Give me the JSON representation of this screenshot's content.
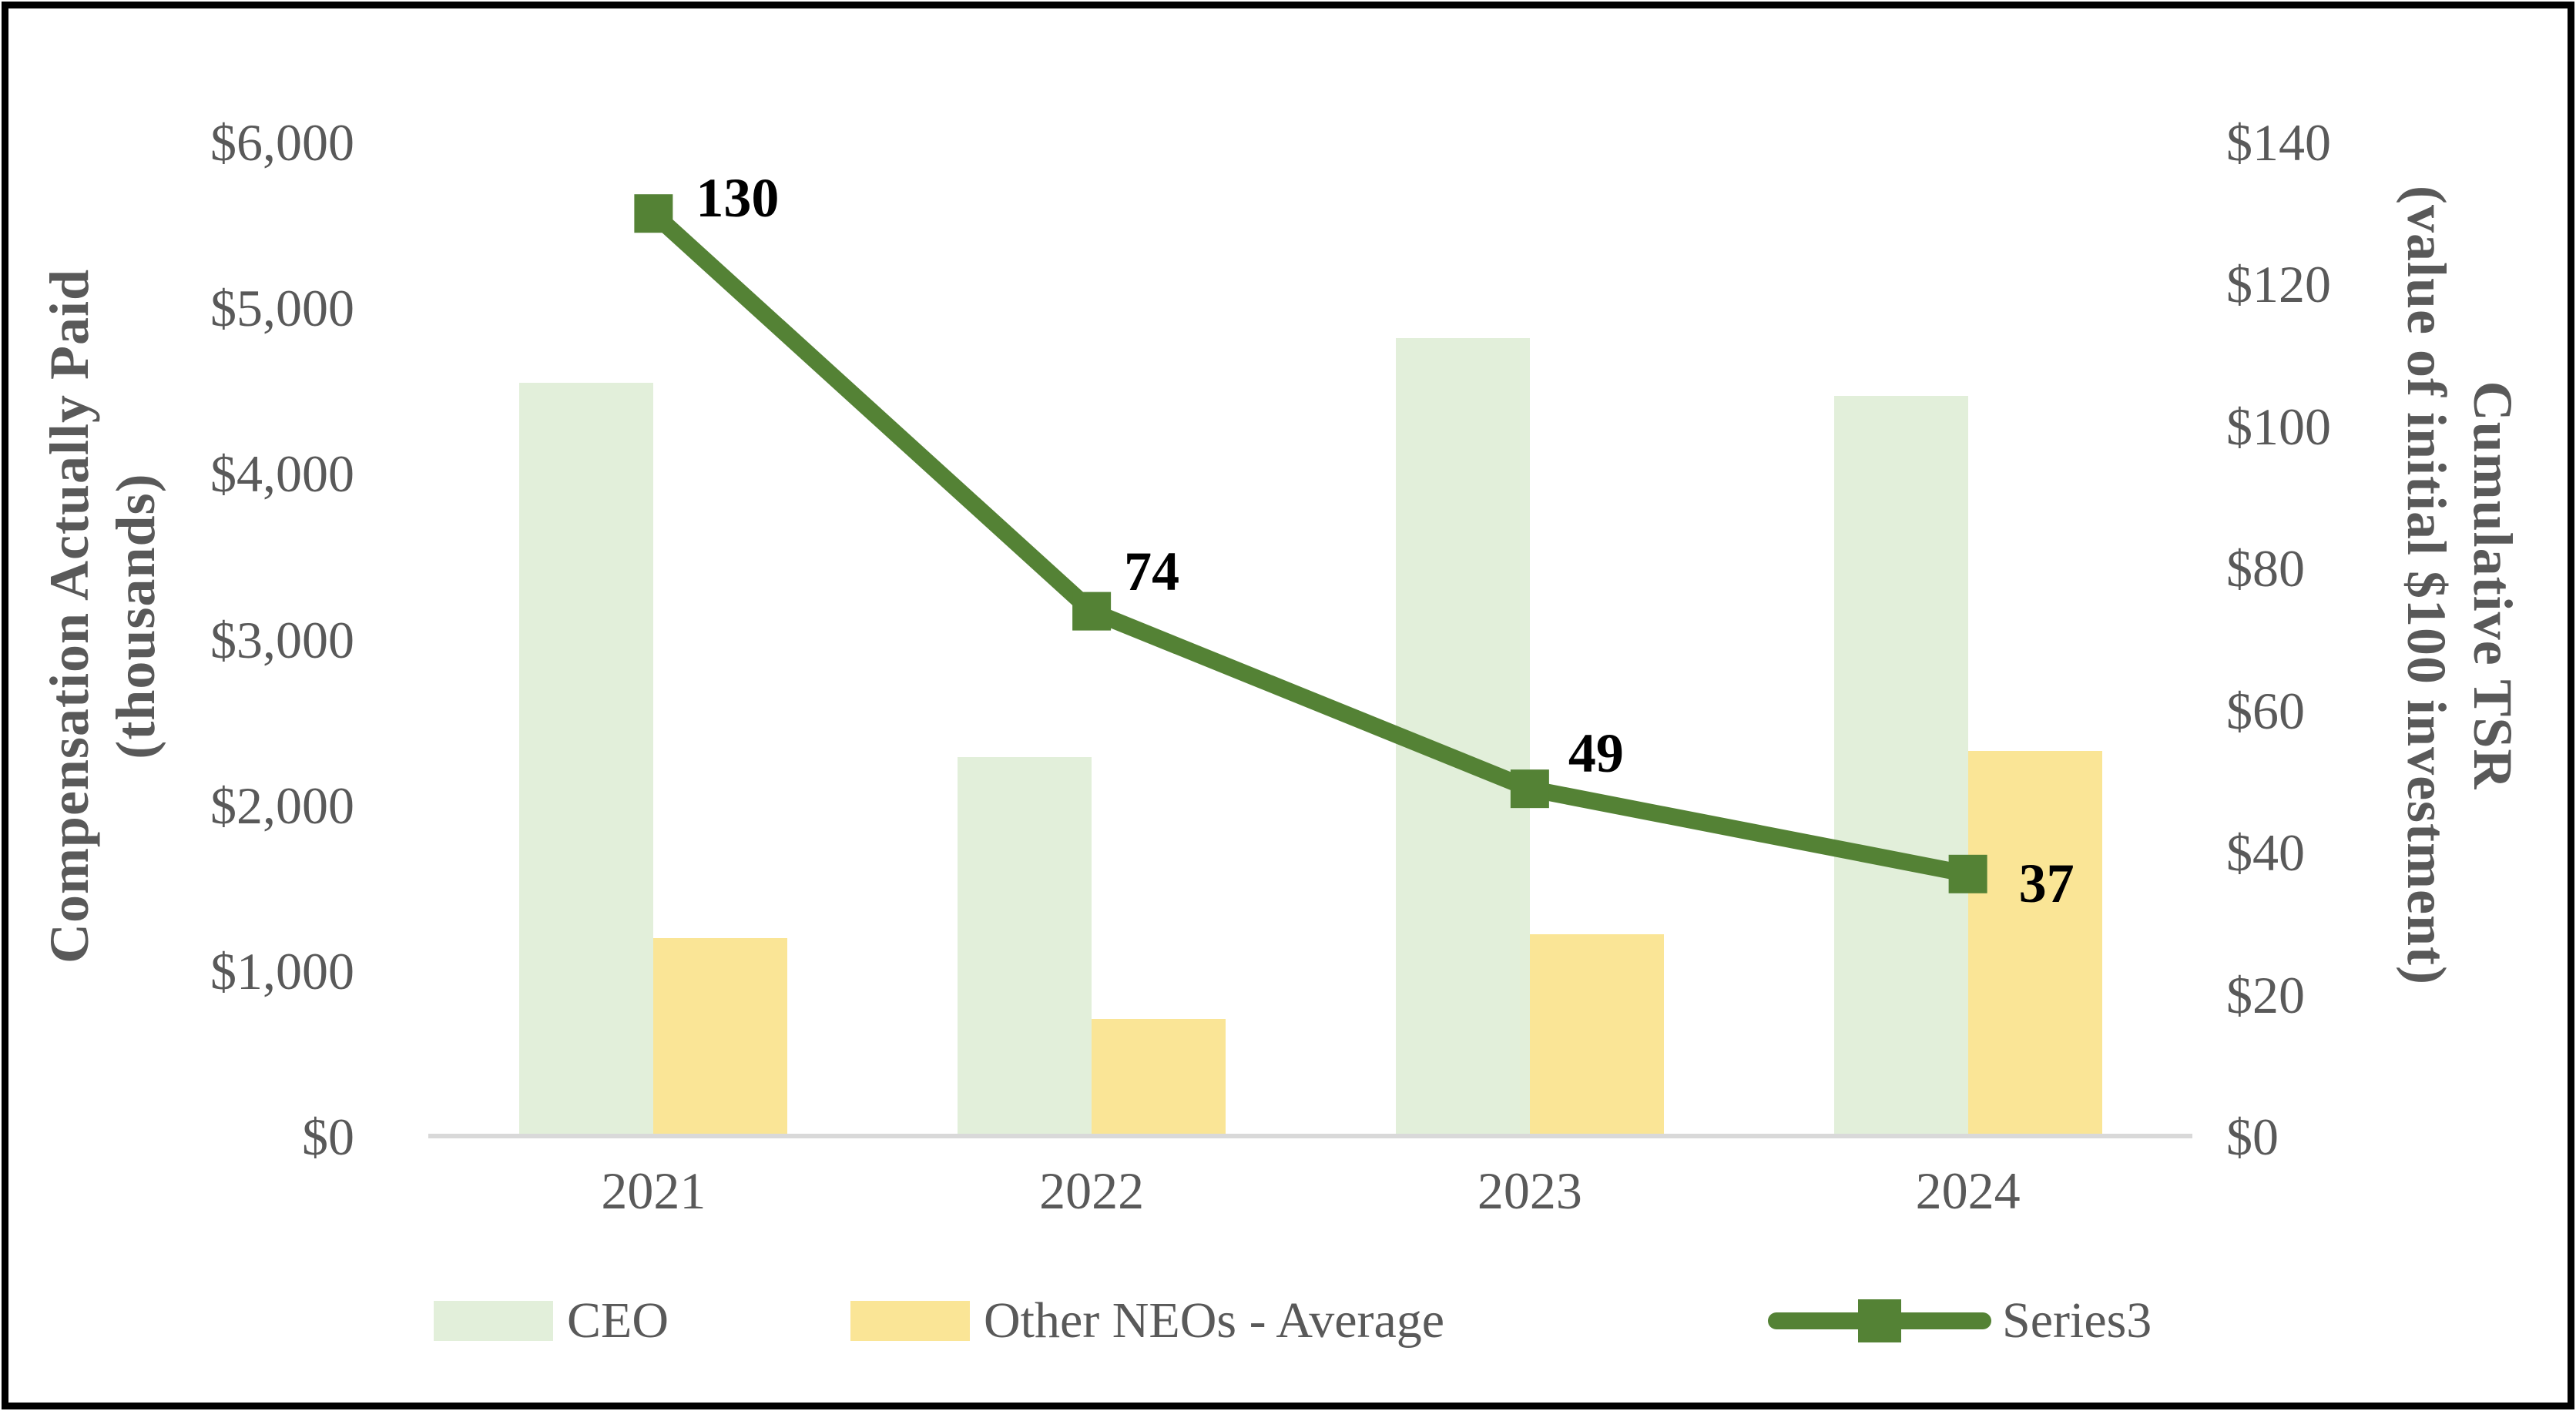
{
  "chart_data": {
    "type": "combo-bar-line",
    "categories": [
      "2021",
      "2022",
      "2023",
      "2024"
    ],
    "series": [
      {
        "name": "CEO",
        "type": "bar",
        "axis": "left",
        "color": "#E2EFDA",
        "values": [
          4550,
          2290,
          4820,
          4470
        ]
      },
      {
        "name": "Other NEOs - Average",
        "type": "bar",
        "axis": "left",
        "color": "#FAE596",
        "values": [
          1200,
          710,
          1220,
          2330
        ]
      },
      {
        "name": "Series3",
        "type": "line",
        "axis": "right",
        "color": "#548235",
        "values": [
          130,
          74,
          49,
          37
        ],
        "data_labels": [
          "130",
          "74",
          "49",
          "37"
        ]
      }
    ],
    "left_axis": {
      "title_line1": "Compensation Actually Paid",
      "title_line2": "(thousands)",
      "min": 0,
      "max": 6000,
      "tick_step": 1000,
      "tick_labels": [
        "$6,000",
        "$5,000",
        "$4,000",
        "$3,000",
        "$2,000",
        "$1,000",
        "$0"
      ]
    },
    "right_axis": {
      "title_line1": "Cumulative TSR",
      "title_line2": "(value of initial $100 investment)",
      "min": 0,
      "max": 140,
      "tick_step": 20,
      "tick_labels": [
        "$140",
        "$120",
        "$100",
        "$80",
        "$60",
        "$40",
        "$20",
        "$0"
      ]
    },
    "legend_position": "bottom",
    "grid": "off"
  },
  "colors": {
    "bar_ceo": "#E2EFDA",
    "bar_neo": "#FAE596",
    "line": "#548235",
    "axis_text": "#595959",
    "axis_line": "#D9D9D9",
    "data_label": "#000000",
    "border": "#000000",
    "background": "#FFFFFF"
  }
}
